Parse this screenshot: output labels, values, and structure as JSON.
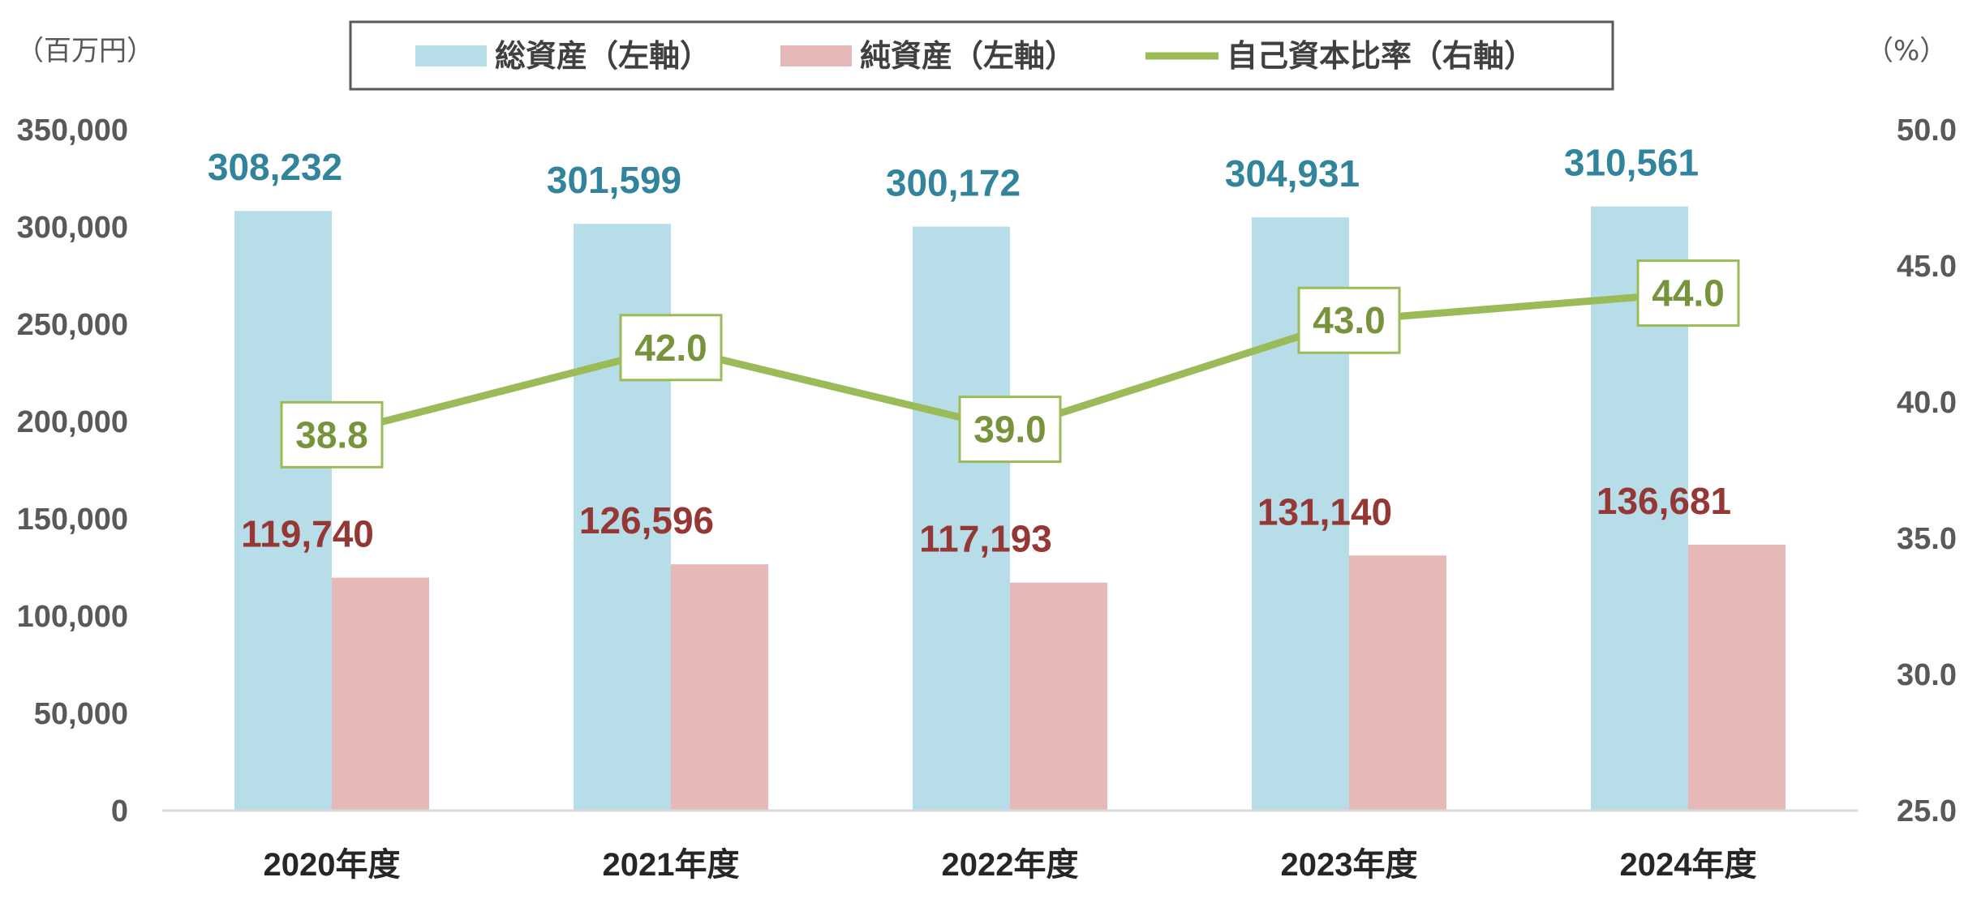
{
  "chart_data": {
    "type": "bar",
    "categories": [
      "2020年度",
      "2021年度",
      "2022年度",
      "2023年度",
      "2024年度"
    ],
    "series": [
      {
        "name": "総資産（左軸）",
        "kind": "bar",
        "axis": "left",
        "color": "#b7dee8",
        "label_color": "#31849b",
        "values": [
          308232,
          301599,
          300172,
          304931,
          310561
        ],
        "labels": [
          "308,232",
          "301,599",
          "300,172",
          "304,931",
          "310,561"
        ]
      },
      {
        "name": "純資産（左軸）",
        "kind": "bar",
        "axis": "left",
        "color": "#e6b9b8",
        "label_color": "#953735",
        "values": [
          119740,
          126596,
          117193,
          131140,
          136681
        ],
        "labels": [
          "119,740",
          "126,596",
          "117,193",
          "131,140",
          "136,681"
        ]
      },
      {
        "name": "自己資本比率（右軸）",
        "kind": "line",
        "axis": "right",
        "color": "#9bbb59",
        "label_color": "#77933c",
        "values": [
          38.8,
          42.0,
          39.0,
          43.0,
          44.0
        ],
        "labels": [
          "38.8",
          "42.0",
          "39.0",
          "43.0",
          "44.0"
        ]
      }
    ],
    "left_axis": {
      "unit": "（百万円）",
      "ylim": [
        0,
        350000
      ],
      "ticks": [
        0,
        50000,
        100000,
        150000,
        200000,
        250000,
        300000,
        350000
      ],
      "tick_labels": [
        "0",
        "50,000",
        "100,000",
        "150,000",
        "200,000",
        "250,000",
        "300,000",
        "350,000"
      ]
    },
    "right_axis": {
      "unit": "（%）",
      "ylim": [
        25,
        50
      ],
      "ticks": [
        25,
        30,
        35,
        40,
        45,
        50
      ],
      "tick_labels": [
        "25.0",
        "30.0",
        "35.0",
        "40.0",
        "45.0",
        "50.0"
      ]
    },
    "grid": false,
    "legend_position": "top-center"
  }
}
